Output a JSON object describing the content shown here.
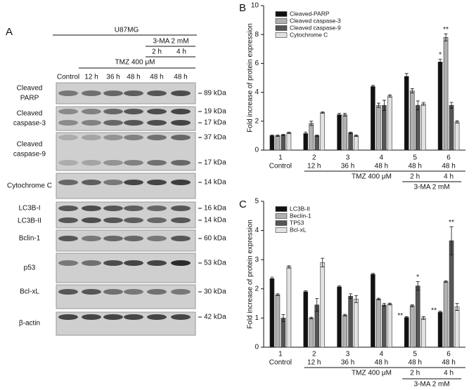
{
  "blot": {
    "panel_label": "A",
    "cell_line": "U87MG",
    "treatment_3ma": "3-MA 2 mM",
    "times_3ma": [
      "2 h",
      "4 h"
    ],
    "treatment_tmz": "TMZ 400 μM",
    "lanes": [
      "Control",
      "12 h",
      "36 h",
      "48 h",
      "48 h",
      "48 h"
    ],
    "rows": [
      {
        "label": [
          "Cleaved",
          "PARP"
        ],
        "markers": [
          "89 kDa"
        ]
      },
      {
        "label": [
          "Cleaved",
          "caspase-3"
        ],
        "markers": [
          "19 kDa",
          "17 kDa"
        ]
      },
      {
        "label": [
          "Cleaved",
          "caspase-9"
        ],
        "markers": [
          "37 kDa",
          "17 kDa"
        ]
      },
      {
        "label": [
          "Cytochrome C"
        ],
        "markers": [
          "14 kDa"
        ]
      },
      {
        "label": [
          "LC3B-I",
          "LC3B-II"
        ],
        "markers": [
          "16 kDa",
          "14 kDa"
        ]
      },
      {
        "label": [
          "Bclin-1"
        ],
        "markers": [
          "60 kDa"
        ]
      },
      {
        "label": [
          "p53"
        ],
        "markers": [
          "53 kDa"
        ]
      },
      {
        "label": [
          "Bcl-xL"
        ],
        "markers": [
          "30 kDa"
        ]
      },
      {
        "label": [
          "β-actin"
        ],
        "markers": [
          "42 kDa"
        ]
      }
    ]
  },
  "chart_data": [
    {
      "type": "bar",
      "panel_label": "B",
      "y_label": "Fold increase of protein expression",
      "categories": [
        "1",
        "2",
        "3",
        "4",
        "5",
        "6"
      ],
      "category_sublabels": [
        "Control",
        "12 h",
        "36 h",
        "48 h",
        "48 h",
        "48 h"
      ],
      "treatment_tmz": "TMZ 400 μM",
      "times_3ma": [
        "2 h",
        "4 h"
      ],
      "treatment_3ma": "3-MA 2 mM",
      "ylim": [
        0,
        10
      ],
      "yticks": [
        0,
        2,
        4,
        6,
        8,
        10
      ],
      "series": [
        {
          "name": "Cleaved-PARP",
          "color": "#111111",
          "values": [
            1.0,
            1.15,
            2.45,
            4.4,
            5.1,
            6.1
          ],
          "errors": [
            0.05,
            0.1,
            0.1,
            0.08,
            0.2,
            0.2
          ]
        },
        {
          "name": "Cleaved caspase-3",
          "color": "#b0b0b0",
          "values": [
            1.0,
            1.85,
            2.45,
            3.1,
            4.1,
            7.8
          ],
          "errors": [
            0.05,
            0.15,
            0.1,
            0.15,
            0.15,
            0.25
          ]
        },
        {
          "name": "Cleaved caspase-9",
          "color": "#555555",
          "values": [
            1.05,
            1.0,
            1.2,
            3.1,
            3.1,
            3.1
          ],
          "errors": [
            0.05,
            0.05,
            0.05,
            0.35,
            0.3,
            0.2
          ]
        },
        {
          "name": "Cytochrome C",
          "color": "#e2e2e2",
          "values": [
            1.2,
            2.6,
            1.0,
            3.75,
            3.2,
            1.95
          ],
          "errors": [
            0.05,
            0.05,
            0.05,
            0.08,
            0.1,
            0.08
          ]
        }
      ],
      "annotations": [
        "*",
        "**"
      ]
    },
    {
      "type": "bar",
      "panel_label": "C",
      "y_label": "Fold increase of protein expression",
      "categories": [
        "1",
        "2",
        "3",
        "4",
        "5",
        "6"
      ],
      "category_sublabels": [
        "Control",
        "12 h",
        "36 h",
        "48 h",
        "48 h",
        "48 h"
      ],
      "treatment_tmz": "TMZ 400 μM",
      "times_3ma": [
        "2 h",
        "4 h"
      ],
      "treatment_3ma": "3-MA 2 mM",
      "ylim": [
        0,
        5
      ],
      "yticks": [
        0,
        1,
        2,
        3,
        4,
        5
      ],
      "series": [
        {
          "name": "LC3B-II",
          "color": "#111111",
          "values": [
            2.35,
            1.9,
            2.07,
            2.5,
            1.02,
            1.2
          ],
          "errors": [
            0.05,
            0.03,
            0.03,
            0.03,
            0.03,
            0.03
          ]
        },
        {
          "name": "Beclin-1",
          "color": "#b0b0b0",
          "values": [
            1.8,
            1.0,
            1.1,
            1.65,
            1.42,
            2.25
          ],
          "errors": [
            0.03,
            0.03,
            0.03,
            0.03,
            0.03,
            0.03
          ]
        },
        {
          "name": "TP53",
          "color": "#555555",
          "values": [
            1.0,
            1.45,
            1.75,
            1.45,
            2.1,
            3.65
          ],
          "errors": [
            0.12,
            0.22,
            0.08,
            0.05,
            0.15,
            0.48
          ]
        },
        {
          "name": "Bcl-xL",
          "color": "#e2e2e2",
          "values": [
            2.75,
            2.9,
            1.65,
            1.48,
            1.0,
            1.38
          ],
          "errors": [
            0.04,
            0.15,
            0.12,
            0.03,
            0.05,
            0.12
          ]
        }
      ],
      "annotations": [
        "**",
        "*",
        "**",
        "**"
      ]
    }
  ]
}
